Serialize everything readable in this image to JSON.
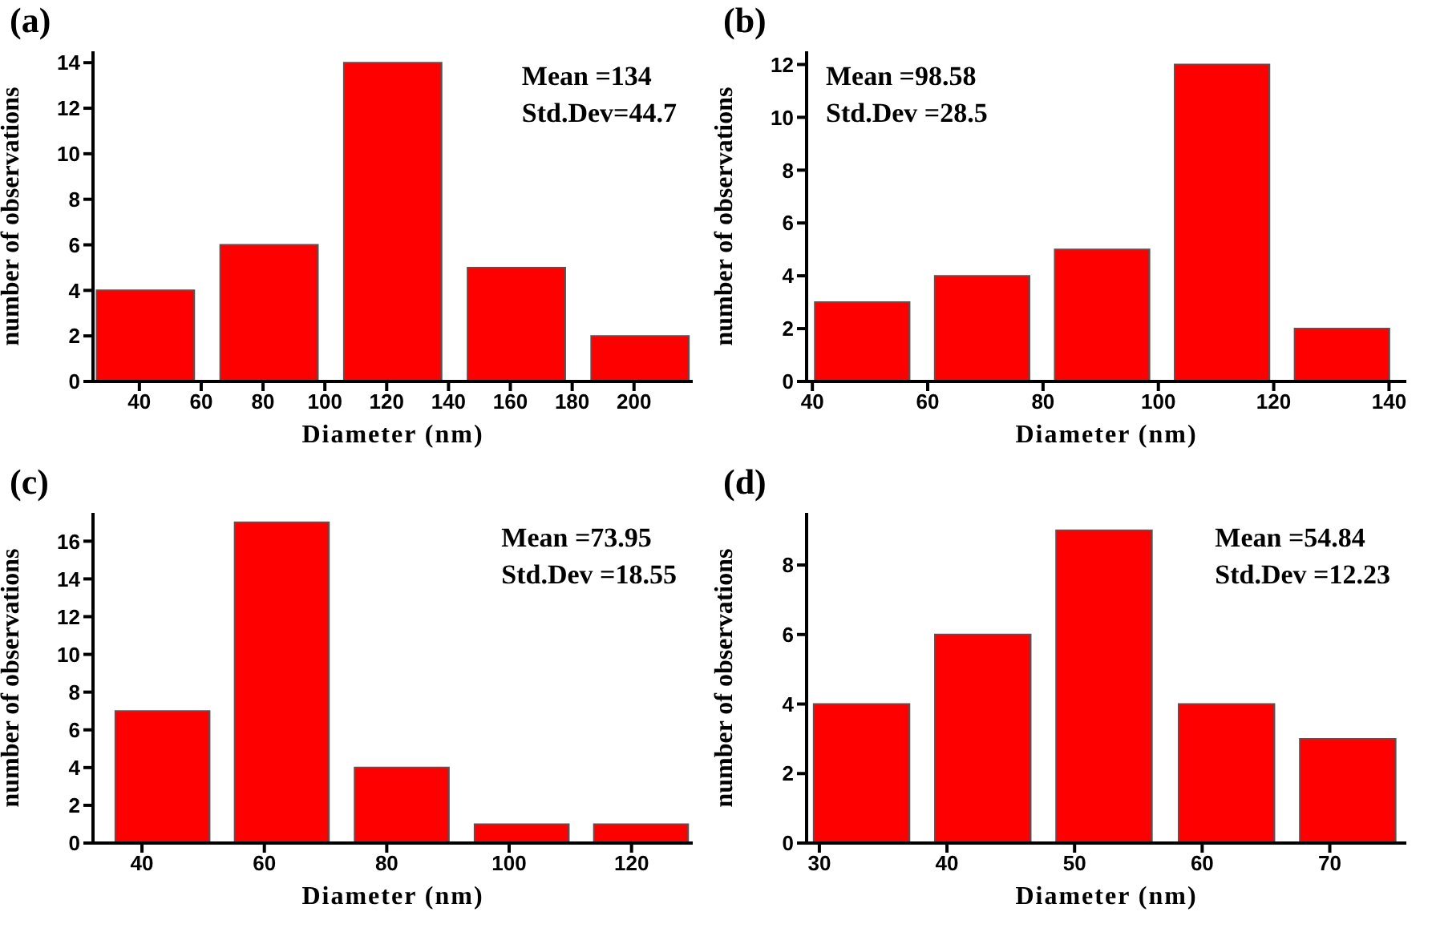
{
  "chart_data": [
    {
      "type": "bar",
      "title": "(a)",
      "xlabel": "Diameter (nm)",
      "ylabel": "number of observations",
      "x": [
        42,
        82,
        122,
        162,
        202
      ],
      "values": [
        4,
        6,
        14,
        5,
        2
      ],
      "color": "#ff0000",
      "xlim": [
        25,
        219
      ],
      "xticks": [
        40,
        60,
        80,
        100,
        120,
        140,
        160,
        180,
        200
      ],
      "ylim": [
        0,
        14.5
      ],
      "yticks": [
        0,
        2,
        4,
        6,
        8,
        10,
        12,
        14
      ],
      "annotations": [
        "Mean =134",
        "Std.Dev=44.7"
      ]
    },
    {
      "type": "bar",
      "title": "(b)",
      "xlabel": "Diameter (nm)",
      "ylabel": "number of observations",
      "x": [
        48.6,
        69.4,
        90.2,
        111,
        131.8
      ],
      "values": [
        3,
        4,
        5,
        12,
        2
      ],
      "color": "#ff0000",
      "xlim": [
        39,
        143
      ],
      "xticks": [
        40,
        60,
        80,
        100,
        120,
        140
      ],
      "ylim": [
        0,
        12.5
      ],
      "yticks": [
        0,
        2,
        4,
        6,
        8,
        10,
        12
      ],
      "annotations": [
        "Mean =98.58",
        "Std.Dev =28.5"
      ]
    },
    {
      "type": "bar",
      "title": "(c)",
      "xlabel": "Diameter (nm)",
      "ylabel": "number of observations",
      "x": [
        43.3,
        62.8,
        82.4,
        102,
        121.5
      ],
      "values": [
        7,
        17,
        4,
        1,
        1
      ],
      "color": "#ff0000",
      "xlim": [
        32,
        130
      ],
      "xticks": [
        40,
        60,
        80,
        100,
        120
      ],
      "ylim": [
        0,
        17.5
      ],
      "yticks": [
        0,
        2,
        4,
        6,
        8,
        10,
        12,
        14,
        16
      ],
      "annotations": [
        "Mean =73.95",
        "Std.Dev =18.55"
      ]
    },
    {
      "type": "bar",
      "title": "(d)",
      "xlabel": "Diameter (nm)",
      "ylabel": "number of observations",
      "x": [
        33.3,
        42.8,
        52.3,
        61.9,
        71.4
      ],
      "values": [
        4,
        6,
        9,
        4,
        3
      ],
      "color": "#ff0000",
      "xlim": [
        29,
        76
      ],
      "xticks": [
        30,
        40,
        50,
        60,
        70
      ],
      "ylim": [
        0,
        9.5
      ],
      "yticks": [
        0,
        2,
        4,
        6,
        8
      ],
      "annotations": [
        "Mean =54.84",
        "Std.Dev =12.23"
      ]
    }
  ]
}
